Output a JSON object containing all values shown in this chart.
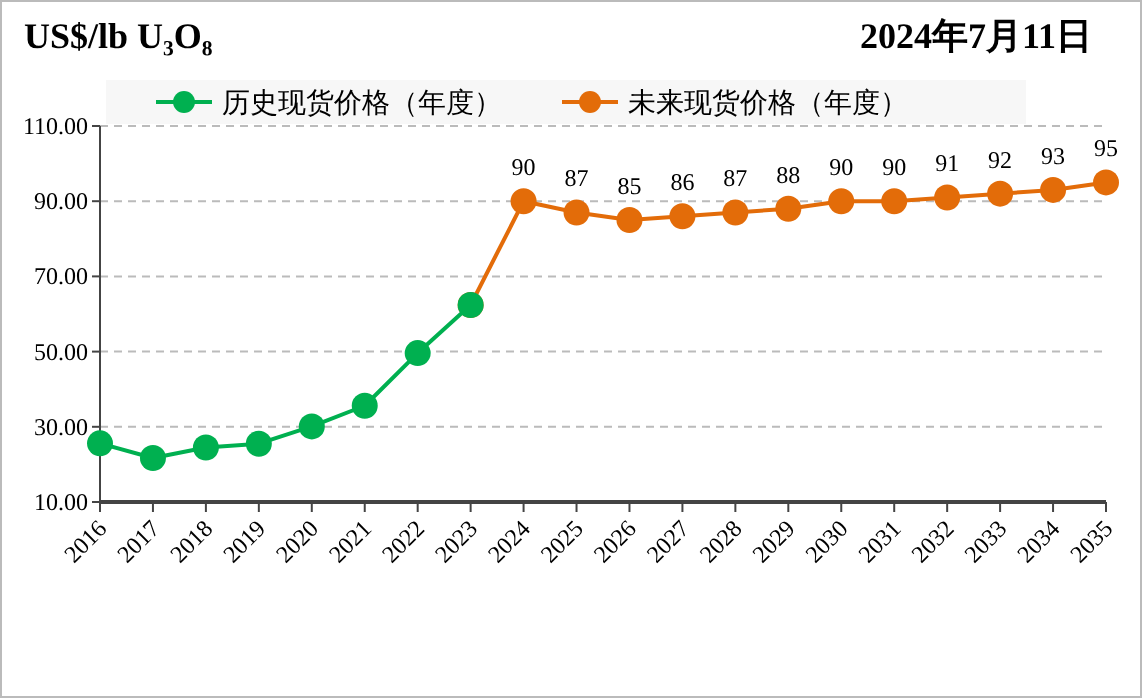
{
  "chart_data": {
    "type": "line",
    "title": "US$/lb U₃O₈",
    "subtitle": "2024年7月11日",
    "categories": [
      "2016",
      "2017",
      "2018",
      "2019",
      "2020",
      "2021",
      "2022",
      "2023",
      "2024",
      "2025",
      "2026",
      "2027",
      "2028",
      "2029",
      "2030",
      "2031",
      "2032",
      "2033",
      "2034",
      "2035"
    ],
    "series": [
      {
        "name": "未来现货价格（年度）",
        "color": "#e36c09",
        "values": [
          null,
          null,
          null,
          null,
          null,
          null,
          null,
          62.4,
          90,
          87,
          85,
          86,
          87,
          88,
          90,
          90,
          91,
          92,
          93,
          95
        ],
        "value_labels": [
          null,
          null,
          null,
          null,
          null,
          null,
          null,
          null,
          "90",
          "87",
          "85",
          "86",
          "87",
          "88",
          "90",
          "90",
          "91",
          "92",
          "93",
          "95"
        ]
      },
      {
        "name": "历史现货价格（年度）",
        "color": "#00b050",
        "values": [
          25.6,
          21.7,
          24.5,
          25.5,
          30.1,
          35.6,
          49.6,
          62.4,
          null,
          null,
          null,
          null,
          null,
          null,
          null,
          null,
          null,
          null,
          null,
          null
        ]
      }
    ],
    "ylim": [
      10,
      110
    ],
    "yticks": [
      {
        "value": 10,
        "label": "10.00"
      },
      {
        "value": 30,
        "label": "30.00"
      },
      {
        "value": 50,
        "label": "50.00"
      },
      {
        "value": 70,
        "label": "70.00"
      },
      {
        "value": 90,
        "label": "90.00"
      },
      {
        "value": 110,
        "label": "110.00"
      }
    ],
    "grid": "y",
    "legend": "top",
    "marker": "circle",
    "line_style": "solid"
  }
}
